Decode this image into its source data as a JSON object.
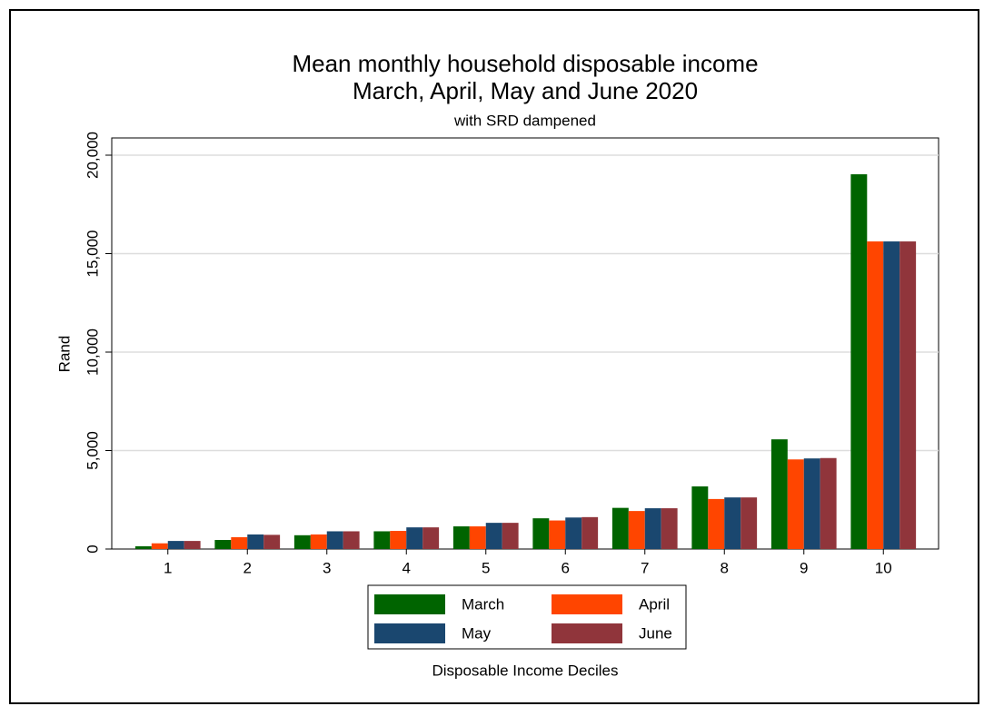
{
  "chart_data": {
    "type": "bar",
    "title": [
      "Mean monthly household disposable income",
      "March, April, May and June 2020"
    ],
    "subtitle": "with SRD dampened",
    "y_label": "Rand",
    "x_label": "Disposable Income Deciles",
    "categories": [
      "1",
      "2",
      "3",
      "4",
      "5",
      "6",
      "7",
      "8",
      "9",
      "10"
    ],
    "series": [
      {
        "name": "March",
        "color": "#006400",
        "values": [
          140,
          460,
          700,
          900,
          1150,
          1560,
          2090,
          3180,
          5570,
          19030
        ]
      },
      {
        "name": "April",
        "color": "#ff4500",
        "values": [
          290,
          600,
          740,
          920,
          1150,
          1450,
          1930,
          2540,
          4550,
          15620
        ]
      },
      {
        "name": "May",
        "color": "#1a476f",
        "values": [
          410,
          740,
          900,
          1100,
          1330,
          1600,
          2070,
          2620,
          4600,
          15620
        ]
      },
      {
        "name": "June",
        "color": "#90353b",
        "values": [
          410,
          720,
          900,
          1100,
          1330,
          1620,
          2070,
          2620,
          4620,
          15620
        ]
      }
    ],
    "ylim": [
      0,
      20000
    ],
    "yticks": [
      0,
      {
        "value": 5000,
        "label": "5,000"
      },
      {
        "value": 10000,
        "label": "10,000"
      },
      {
        "value": 15000,
        "label": "15,000"
      },
      {
        "value": 20000,
        "label": "20,000"
      }
    ],
    "grid": true
  }
}
